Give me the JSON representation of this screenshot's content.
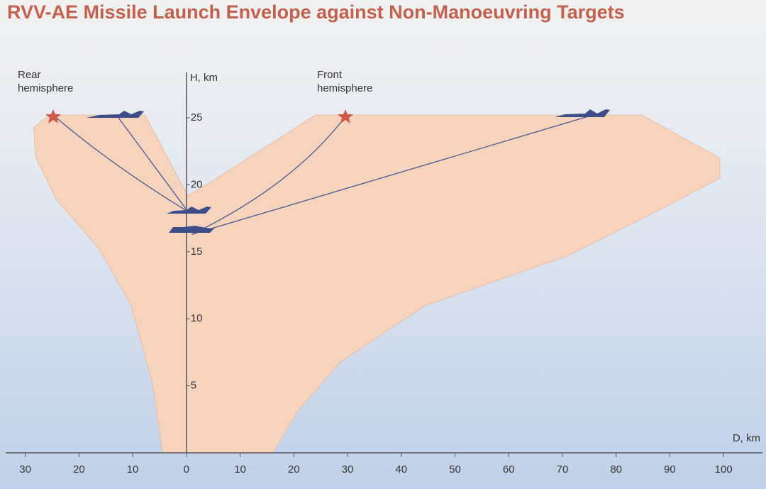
{
  "chart_data": {
    "type": "envelope",
    "title": "RVV-AE Missile Launch Envelope against Non-Manoeuvring Targets",
    "x_label": "D, km",
    "y_label": "H, km",
    "annotations": [
      "Rear hemisphere",
      "Front hemisphere"
    ],
    "xlim": [
      -34.7,
      107.9
    ],
    "ylim": [
      0,
      28.5
    ],
    "xticks": [
      {
        "value": -30,
        "label": "30"
      },
      {
        "value": -20,
        "label": "20"
      },
      {
        "value": -10,
        "label": "10"
      },
      0,
      10,
      20,
      30,
      40,
      50,
      60,
      70,
      80,
      90,
      100
    ],
    "yticks": [
      5,
      10,
      15,
      20,
      25
    ],
    "envelope": {
      "color": "#f6d3bd",
      "x": [
        -4.4,
        -6.3,
        -10.3,
        -16.2,
        -24.2,
        -28.1,
        -28.4,
        -25.5,
        -7.7,
        -2,
        0.3,
        4.9,
        24,
        84.8,
        99.3,
        99.3,
        89.4,
        70.9,
        44.5,
        28.7,
        20.7,
        16.1
      ],
      "y": [
        0,
        5.2,
        11,
        15.2,
        18.9,
        22.1,
        24.3,
        25.2,
        25.2,
        20.9,
        19.2,
        20.3,
        25.2,
        25.2,
        22,
        20.5,
        18.4,
        14.7,
        11,
        6.8,
        3.1,
        0
      ]
    },
    "trajectories": [
      {
        "x": [
          -24.8,
          -14,
          0.3
        ],
        "y": [
          25.2,
          21.5,
          18
        ]
      },
      {
        "x": [
          -13,
          0.3
        ],
        "y": [
          25.2,
          18
        ]
      },
      {
        "x": [
          29.8,
          20,
          1
        ],
        "y": [
          25.2,
          20,
          16.3
        ]
      },
      {
        "x": [
          75.6,
          1
        ],
        "y": [
          25.2,
          16.3
        ]
      }
    ],
    "trajectory_color": "#4a5a8c"
  }
}
